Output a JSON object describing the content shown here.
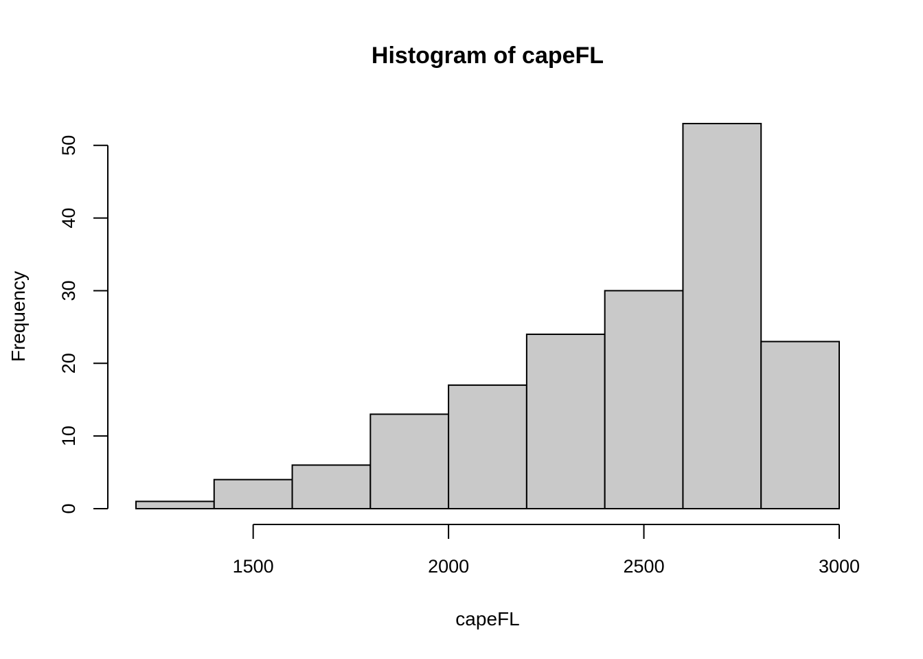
{
  "chart_data": {
    "type": "bar",
    "title": "Histogram of capeFL",
    "xlabel": "capeFL",
    "ylabel": "Frequency",
    "bins": [
      {
        "from": 1200,
        "to": 1400,
        "count": 1
      },
      {
        "from": 1400,
        "to": 1600,
        "count": 4
      },
      {
        "from": 1600,
        "to": 1800,
        "count": 6
      },
      {
        "from": 1800,
        "to": 2000,
        "count": 13
      },
      {
        "from": 2000,
        "to": 2200,
        "count": 17
      },
      {
        "from": 2200,
        "to": 2400,
        "count": 24
      },
      {
        "from": 2400,
        "to": 2600,
        "count": 30
      },
      {
        "from": 2600,
        "to": 2800,
        "count": 53
      },
      {
        "from": 2800,
        "to": 3000,
        "count": 23
      }
    ],
    "x_ticks": [
      1500,
      2000,
      2500,
      3000
    ],
    "y_ticks": [
      0,
      10,
      20,
      30,
      40,
      50
    ],
    "xlim": [
      1200,
      3000
    ],
    "ylim": [
      0,
      53
    ],
    "bar_color": "#c9c9c9",
    "grid": false
  }
}
